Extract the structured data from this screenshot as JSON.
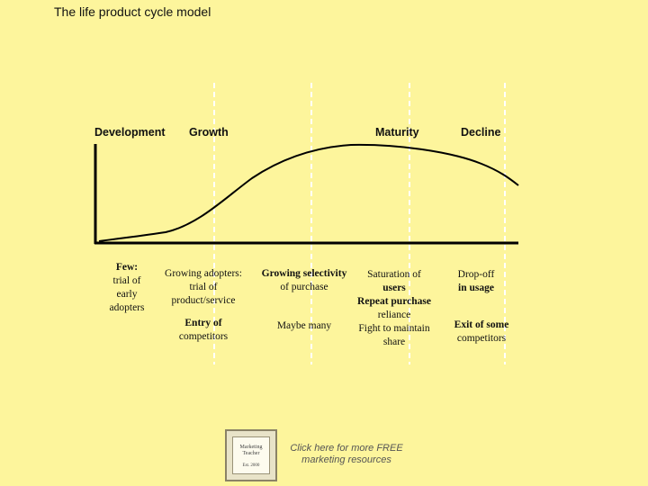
{
  "title": "The life product cycle model",
  "stages": [
    "Development",
    "Growth",
    "Maturity",
    "Decline"
  ],
  "notes": {
    "development": [
      "Few:",
      "trial of",
      "early",
      "adopters"
    ],
    "growth_1": [
      "Growing adopters:",
      "trial of",
      "product/service"
    ],
    "growth_2": [
      "Entry of",
      "competitors"
    ],
    "maturity1_1": [
      "Growing selectivity",
      "of purchase"
    ],
    "maturity1_2": [
      "Maybe many"
    ],
    "maturity2_1": [
      "Saturation of",
      "users",
      "Repeat purchase",
      "reliance",
      "Fight to maintain",
      "share"
    ],
    "decline_1": [
      "Drop-off",
      "in usage"
    ],
    "decline_2": [
      "Exit of some",
      "competitors"
    ]
  },
  "logo": {
    "line1": "Marketing",
    "line2": "Teacher",
    "year": "Est. 2000"
  },
  "promo": {
    "line1": "Click here for more FREE",
    "line2": "marketing resources"
  },
  "colors": {
    "background": "#fdf59c",
    "curve": "#000000",
    "divider": "#ffffff"
  }
}
